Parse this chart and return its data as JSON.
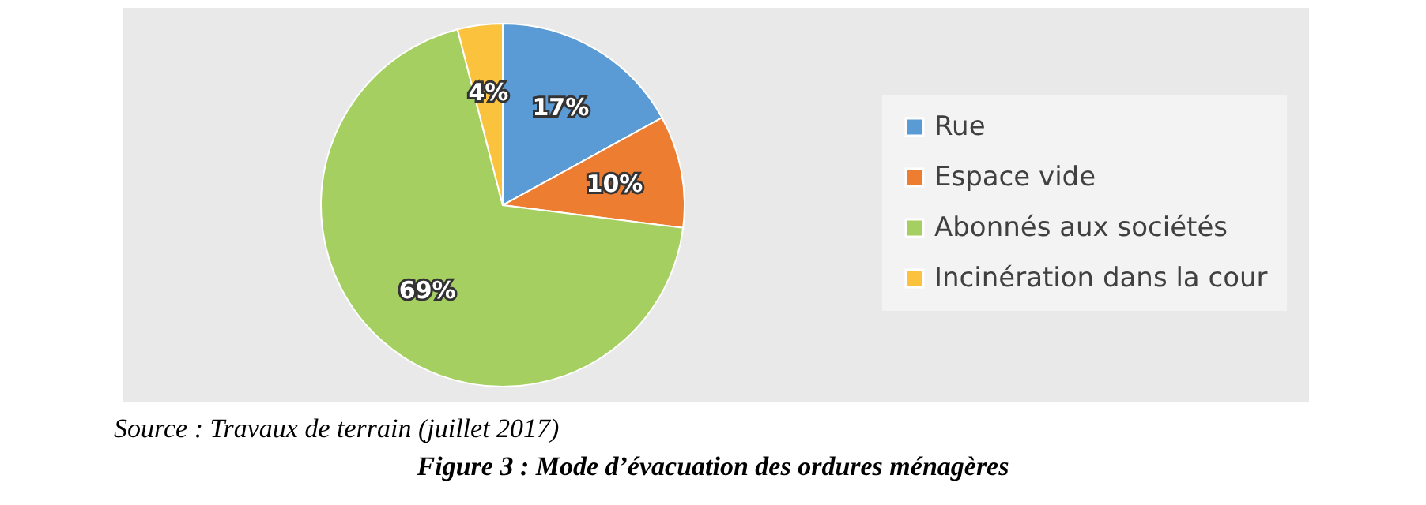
{
  "chart_data": {
    "type": "pie",
    "title": "Figure 3 : Mode d’évacuation des ordures ménagères",
    "categories": [
      "Rue",
      "Espace vide",
      "Abonnés aux sociétés",
      "Incinération dans la cour"
    ],
    "values": [
      17,
      10,
      69,
      4
    ],
    "colors": [
      "#5b9bd5",
      "#ed7d31",
      "#a5cf61",
      "#fbc33d"
    ],
    "value_labels": [
      "17%",
      "10%",
      "69%",
      "4%"
    ],
    "legend": "right",
    "annotations": [
      "Source : Travaux de terrain (juillet 2017)"
    ]
  }
}
